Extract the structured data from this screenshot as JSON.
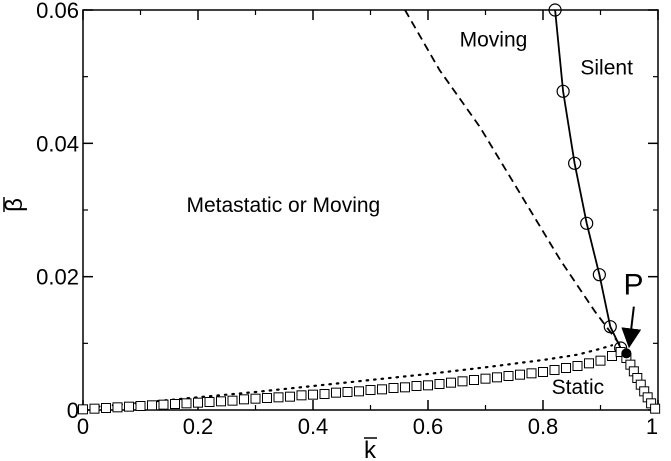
{
  "chart_data": {
    "type": "scatter",
    "xlabel": "k",
    "ylabel": "β",
    "xlim": [
      0,
      1
    ],
    "ylim": [
      0,
      0.06
    ],
    "x_ticks": [
      {
        "value": 0,
        "label": "0"
      },
      {
        "value": 0.2,
        "label": "0.2"
      },
      {
        "value": 0.4,
        "label": "0.4"
      },
      {
        "value": 0.6,
        "label": "0.6"
      },
      {
        "value": 0.8,
        "label": "0.8"
      },
      {
        "value": 1,
        "label": "1"
      }
    ],
    "y_ticks": [
      {
        "value": 0,
        "label": "0"
      },
      {
        "value": 0.02,
        "label": "0.02"
      },
      {
        "value": 0.04,
        "label": "0.04"
      },
      {
        "value": 0.06,
        "label": "0.06"
      }
    ],
    "grid": false,
    "legend": "none",
    "series": [
      {
        "style": "solid-circles",
        "x": [
          0.821,
          0.835,
          0.855,
          0.876,
          0.898,
          0.917,
          0.935,
          0.945
        ],
        "y": [
          0.06,
          0.0478,
          0.037,
          0.028,
          0.0203,
          0.0125,
          0.0093,
          0.0085
        ],
        "curve_x": [
          0.821,
          0.835,
          0.855,
          0.876,
          0.898,
          0.917,
          0.935,
          0.945
        ],
        "curve_y": [
          0.06,
          0.0478,
          0.037,
          0.028,
          0.0203,
          0.0125,
          0.0093,
          0.0085
        ]
      },
      {
        "style": "dashed",
        "x": [
          0.56,
          0.62,
          0.69,
          0.76,
          0.83,
          0.89,
          0.945
        ],
        "y": [
          0.06,
          0.051,
          0.0425,
          0.0325,
          0.0225,
          0.0148,
          0.0085
        ]
      },
      {
        "style": "dotted",
        "x": [
          0,
          0.1,
          0.2,
          0.3,
          0.4,
          0.5,
          0.6,
          0.7,
          0.8,
          0.86,
          0.9,
          0.92
        ],
        "y": [
          0.0003,
          0.0011,
          0.0019,
          0.0027,
          0.0036,
          0.0045,
          0.0054,
          0.0064,
          0.0075,
          0.0083,
          0.0092,
          0.0097
        ]
      },
      {
        "style": "squares",
        "x": [
          0,
          0.02,
          0.04,
          0.06,
          0.08,
          0.1,
          0.12,
          0.14,
          0.16,
          0.18,
          0.2,
          0.22,
          0.24,
          0.26,
          0.28,
          0.3,
          0.32,
          0.34,
          0.36,
          0.38,
          0.4,
          0.42,
          0.44,
          0.46,
          0.48,
          0.5,
          0.52,
          0.54,
          0.56,
          0.58,
          0.6,
          0.62,
          0.64,
          0.66,
          0.68,
          0.7,
          0.72,
          0.74,
          0.76,
          0.78,
          0.8,
          0.82,
          0.84,
          0.86,
          0.88,
          0.9,
          0.92,
          0.935,
          0.945,
          0.952,
          0.958,
          0.964,
          0.97,
          0.976,
          0.982,
          0.988,
          0.995
        ],
        "y": [
          0.0001,
          0.0002,
          0.0003,
          0.0004,
          0.0005,
          0.0006,
          0.0007,
          0.0008,
          0.0009,
          0.001,
          0.0011,
          0.0012,
          0.0013,
          0.0014,
          0.0016,
          0.0017,
          0.0018,
          0.0019,
          0.002,
          0.0022,
          0.0023,
          0.0024,
          0.0026,
          0.0027,
          0.0028,
          0.003,
          0.0031,
          0.0033,
          0.0034,
          0.0036,
          0.0037,
          0.0039,
          0.0041,
          0.0043,
          0.0045,
          0.0047,
          0.0049,
          0.0051,
          0.0053,
          0.0055,
          0.0057,
          0.006,
          0.0063,
          0.0066,
          0.007,
          0.0074,
          0.0081,
          0.0087,
          0.0078,
          0.0068,
          0.0058,
          0.0048,
          0.0038,
          0.0028,
          0.0019,
          0.001,
          0.0002
        ]
      }
    ],
    "point_P": {
      "x": 0.945,
      "y": 0.0085
    },
    "annotations": [
      {
        "text": "Moving",
        "x": 0.655,
        "y": 0.0545
      },
      {
        "text": "Silent",
        "x": 0.865,
        "y": 0.0503
      },
      {
        "text": "Metastatic or Moving",
        "x": 0.18,
        "y": 0.0297
      },
      {
        "text": "Static",
        "x": 0.815,
        "y": 0.0024
      },
      {
        "text": "P",
        "x": 0.94,
        "y": 0.0173
      }
    ]
  }
}
